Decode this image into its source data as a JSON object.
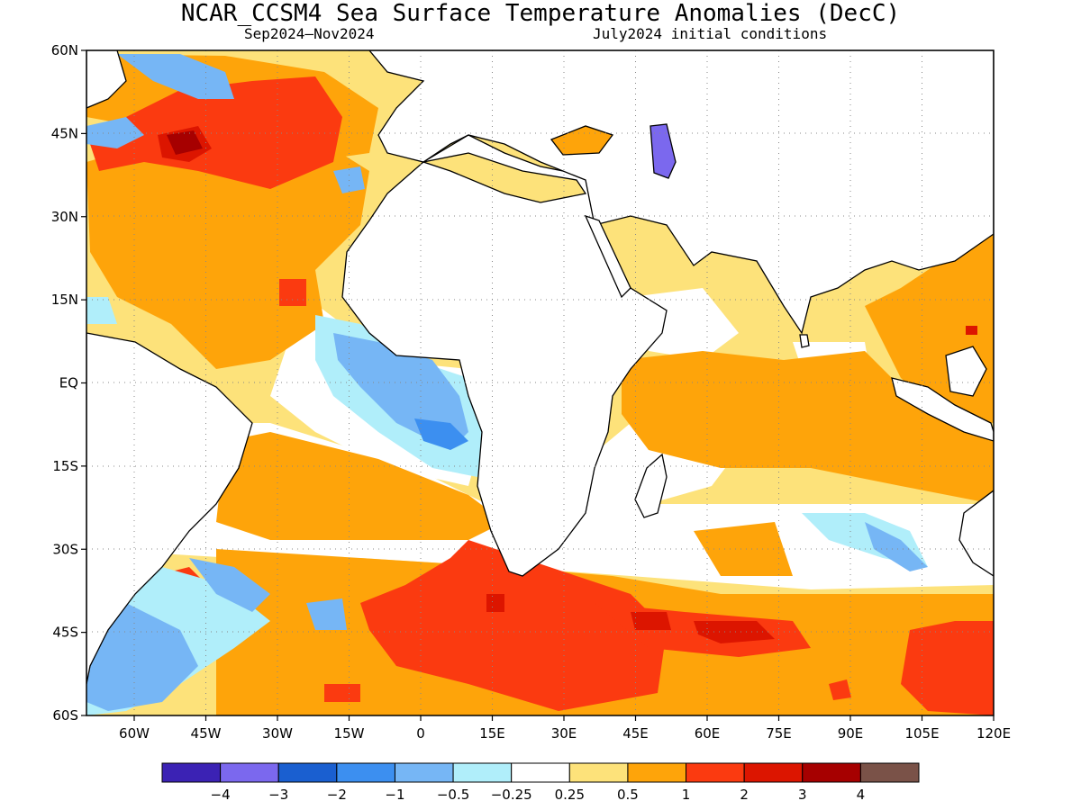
{
  "title": "NCAR_CCSM4 Sea Surface Temperature Anomalies (DecC)",
  "subtitle_left": "Sep2024–Nov2024",
  "subtitle_right": "July2024 initial conditions",
  "map": {
    "lon_range": [
      -70,
      120
    ],
    "lat_range": [
      -60,
      60
    ],
    "lon_ticks": [
      {
        "value": -60,
        "label": "60W"
      },
      {
        "value": -45,
        "label": "45W"
      },
      {
        "value": -30,
        "label": "30W"
      },
      {
        "value": -15,
        "label": "15W"
      },
      {
        "value": 0,
        "label": "0"
      },
      {
        "value": 15,
        "label": "15E"
      },
      {
        "value": 30,
        "label": "30E"
      },
      {
        "value": 45,
        "label": "45E"
      },
      {
        "value": 60,
        "label": "60E"
      },
      {
        "value": 75,
        "label": "75E"
      },
      {
        "value": 90,
        "label": "90E"
      },
      {
        "value": 105,
        "label": "105E"
      },
      {
        "value": 120,
        "label": "120E"
      }
    ],
    "lat_ticks": [
      {
        "value": 60,
        "label": "60N"
      },
      {
        "value": 45,
        "label": "45N"
      },
      {
        "value": 30,
        "label": "30N"
      },
      {
        "value": 15,
        "label": "15N"
      },
      {
        "value": 0,
        "label": "EQ"
      },
      {
        "value": -15,
        "label": "15S"
      },
      {
        "value": -30,
        "label": "30S"
      },
      {
        "value": -45,
        "label": "45S"
      },
      {
        "value": -60,
        "label": "60S"
      }
    ],
    "grid": "dotted"
  },
  "colorbar": {
    "colors": [
      "#3b22b4",
      "#7b68ee",
      "#1a5fd0",
      "#3c8ff0",
      "#76b6f5",
      "#b0eefa",
      "#ffffff",
      "#fde27a",
      "#fea40a",
      "#fb3a10",
      "#dc1500",
      "#a60000",
      "#7a5248"
    ],
    "labels": [
      "−4",
      "−3",
      "−2",
      "−1",
      "−0.5",
      "−0.25",
      "0.25",
      "0.5",
      "1",
      "2",
      "3",
      "4"
    ]
  }
}
